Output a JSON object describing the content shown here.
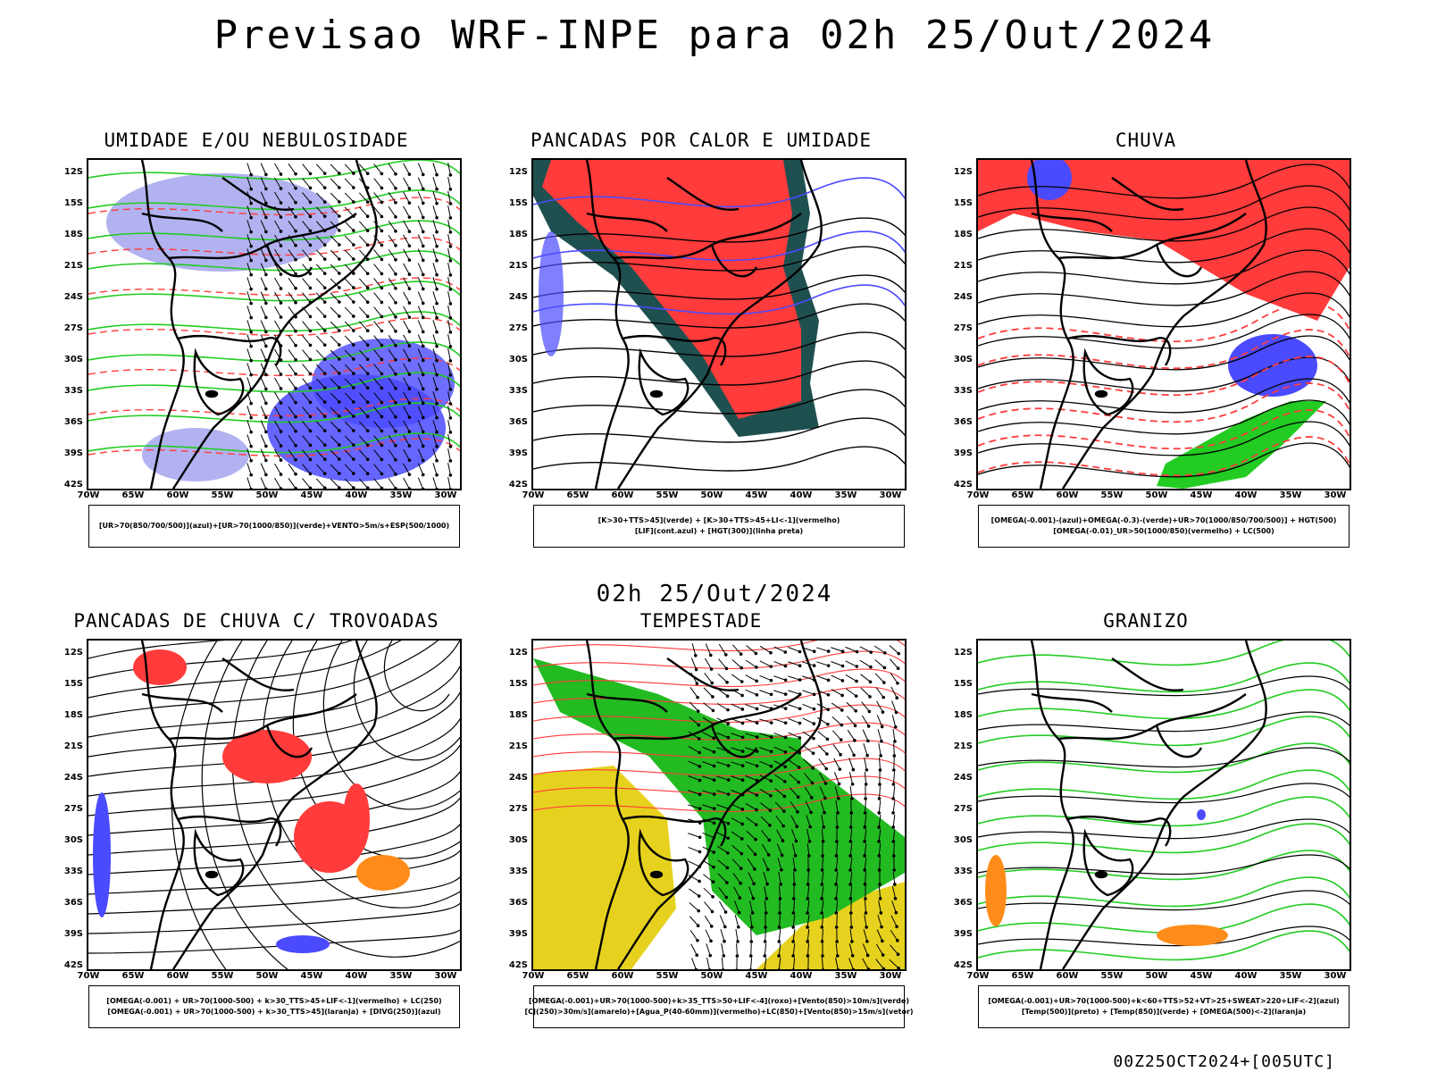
{
  "header": {
    "title": "Previsao WRF-INPE  para 02h 25/Out/2024"
  },
  "mid_label": "02h 25/Out/2024",
  "footer": "00Z25OCT2024+[005UTC]",
  "axes": {
    "lat_labels": [
      "12S",
      "15S",
      "18S",
      "21S",
      "24S",
      "27S",
      "30S",
      "33S",
      "36S",
      "39S",
      "42S"
    ],
    "lon_labels": [
      "70W",
      "65W",
      "60W",
      "55W",
      "50W",
      "45W",
      "40W",
      "35W",
      "30W"
    ]
  },
  "colors": {
    "blue": "#4a4aff",
    "lightblue": "#aaaaf0",
    "green": "#22cc22",
    "red": "#ff3b3b",
    "darkteal": "#1f5050",
    "orange": "#ff8c1a",
    "yellow": "#e6d21e",
    "black": "#000000"
  },
  "panels": [
    {
      "title": "UMIDADE E/OU NEBULOSIDADE",
      "legend": [
        "[UR>70(850/700/500)](azul)+[UR>70(1000/850)](verde)+VENTO>5m/s+ESP(500/1000)"
      ]
    },
    {
      "title": "PANCADAS POR CALOR E UMIDADE",
      "legend": [
        "[K>30+TTS>45](verde) + [K>30+TTS>45+LI<-1](vermelho)",
        "[LIF](cont.azul) + [HGT(300)](linha preta)"
      ]
    },
    {
      "title": "CHUVA",
      "legend": [
        "[OMEGA(-0.001)-(azul)+OMEGA(-0.3)-(verde)+UR>70(1000/850/700/500)] + HGT(500)",
        "[OMEGA(-0.01)_UR>50(1000/850)(vermelho) + LC(500)"
      ]
    },
    {
      "title": "PANCADAS DE CHUVA C/ TROVOADAS",
      "legend": [
        "[OMEGA(-0.001) + UR>70(1000-500) + k>30_TTS>45+LIF<-1](vermelho) + LC(250)",
        "[OMEGA(-0.001) + UR>70(1000-500) + k>30_TTS>45](laranja) + [DIVG(250)](azul)"
      ]
    },
    {
      "title": "TEMPESTADE",
      "legend": [
        "[OMEGA(-0.001)+UR>70(1000-500)+k>35_TTS>50+LIF<-4](roxo)+[Vento(850)>10m/s](verde)",
        "[CJ(250)>30m/s](amarelo)+[Agua_P(40-60mm)](vermelho)+LC(850)+[Vento(850)>15m/s](vetor)"
      ]
    },
    {
      "title": "GRANIZO",
      "legend": [
        "[OMEGA(-0.001)+UR>70(1000-500)+k<60+TTS>52+VT>25+SWEAT>220+LIF<-2](azul)",
        "[Temp(500)](preto) + [Temp(850)](verde) + [OMEGA(500)<-2](laranja)"
      ]
    }
  ]
}
